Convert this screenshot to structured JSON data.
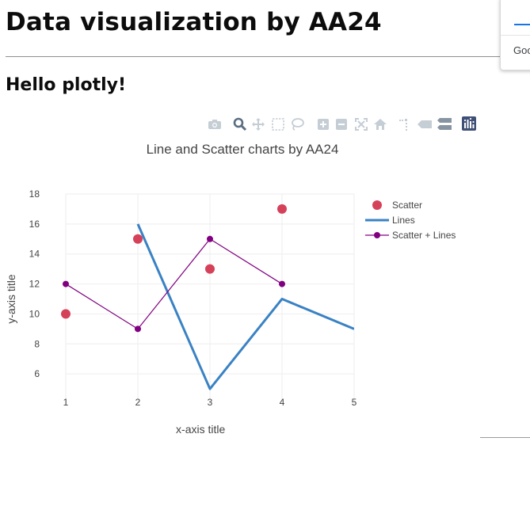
{
  "page": {
    "heading": "Data visualization by AA24",
    "subheading": "Hello plotly!",
    "popup_text": "Goo"
  },
  "modebar": {
    "icons": [
      "camera-icon",
      "zoom-icon",
      "pan-icon",
      "box-select-icon",
      "lasso-select-icon",
      "zoom-in-icon",
      "zoom-out-icon",
      "autoscale-icon",
      "reset-axes-icon",
      "spike-lines-icon",
      "hover-closest-icon",
      "hover-compare-icon",
      "plotly-logo-icon"
    ]
  },
  "chart_data": {
    "type": "line",
    "title": "Line and Scatter charts by AA24",
    "xlabel": "x-axis title",
    "ylabel": "y-axis title",
    "xlim": [
      1,
      5
    ],
    "ylim": [
      4,
      18
    ],
    "xticks": [
      "1",
      "2",
      "3",
      "4",
      "5"
    ],
    "yticks": [
      "6",
      "8",
      "10",
      "12",
      "14",
      "16",
      "18"
    ],
    "grid": true,
    "legend_position": "right",
    "series": [
      {
        "name": "Scatter",
        "mode": "markers",
        "color": "#d6415a",
        "x": [
          1,
          2,
          3,
          4
        ],
        "y": [
          10,
          15,
          13,
          17
        ]
      },
      {
        "name": "Lines",
        "mode": "lines",
        "color": "#3a82c4",
        "x": [
          2,
          3,
          4,
          5
        ],
        "y": [
          16,
          5,
          11,
          9
        ]
      },
      {
        "name": "Scatter + Lines",
        "mode": "lines+markers",
        "color": "#800080",
        "x": [
          1,
          2,
          3,
          4
        ],
        "y": [
          12,
          9,
          15,
          12
        ]
      }
    ]
  }
}
